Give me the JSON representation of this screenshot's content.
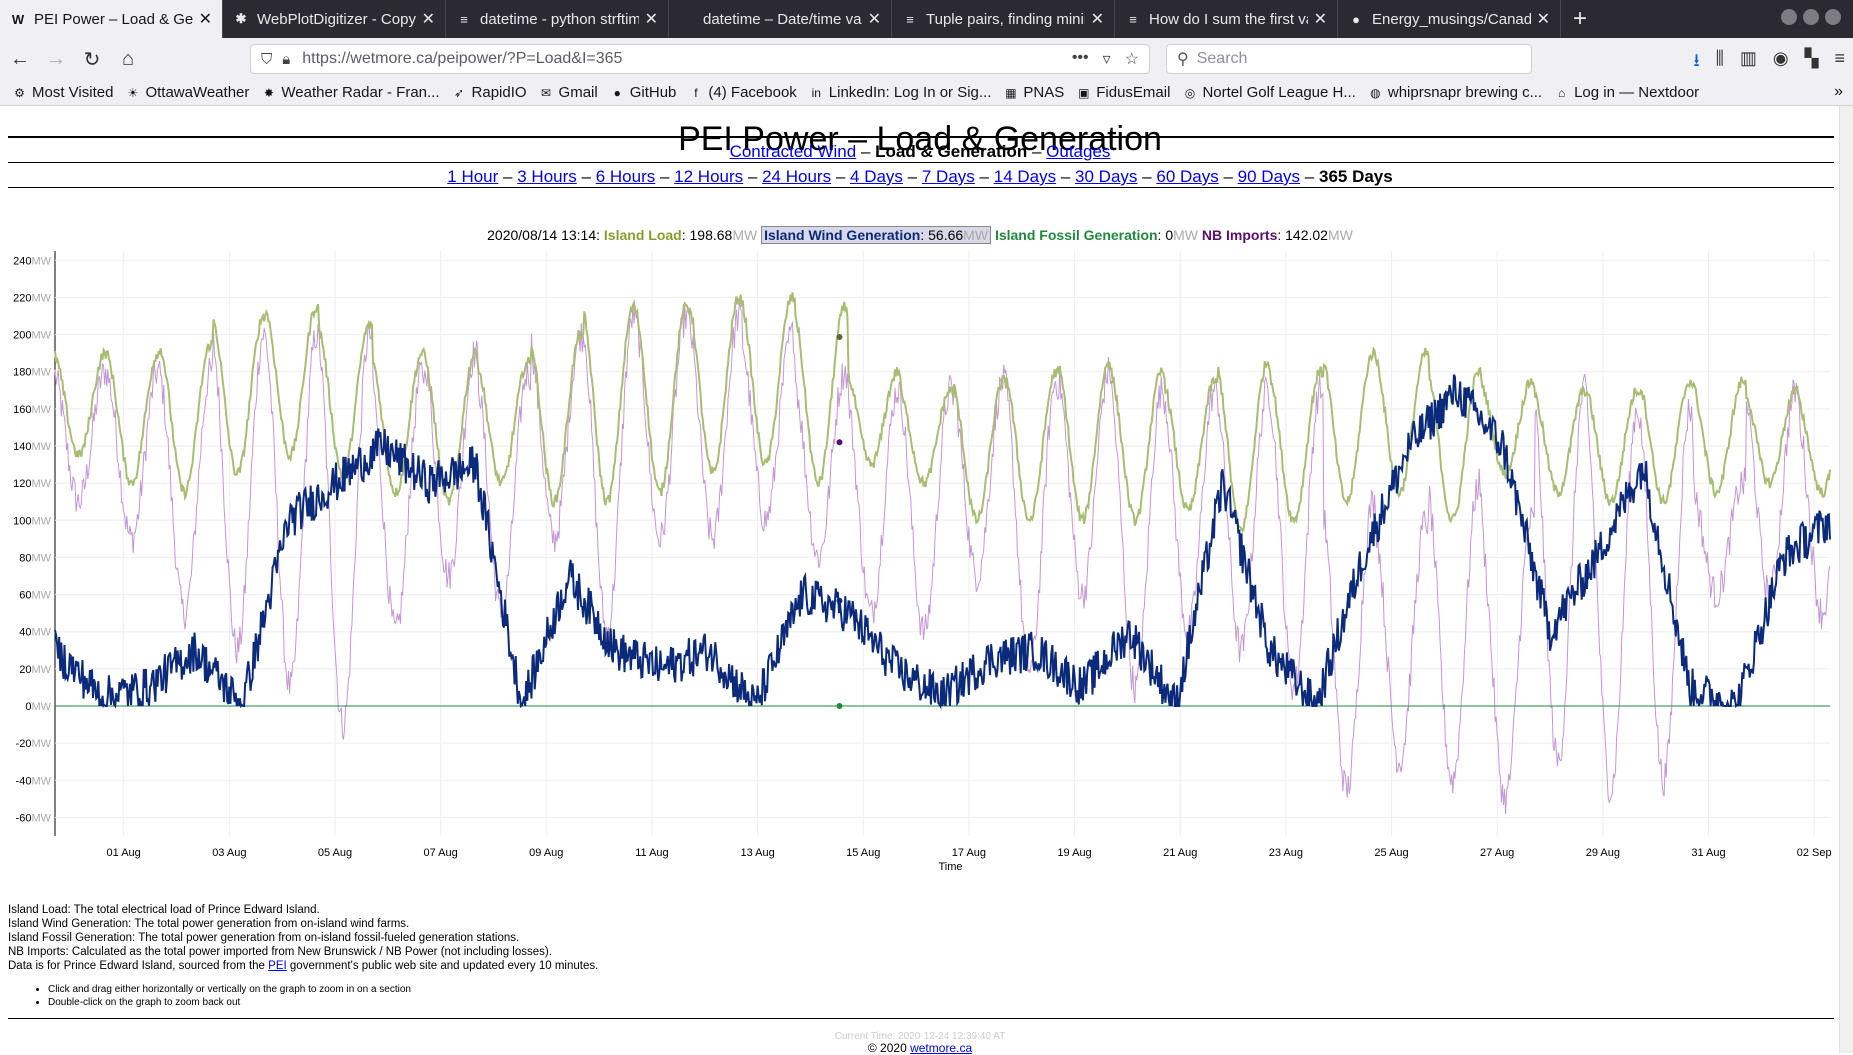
{
  "browser": {
    "tabs": [
      {
        "title": "PEI Power – Load & Gene",
        "favicon": "W",
        "active": true
      },
      {
        "title": "WebPlotDigitizer - Copy",
        "favicon": "✱",
        "active": false
      },
      {
        "title": "datetime - python strftim",
        "favicon": "≡",
        "active": false
      },
      {
        "title": "datetime – Date/time value",
        "favicon": "",
        "active": false
      },
      {
        "title": "Tuple pairs, finding minin",
        "favicon": "≡",
        "active": false
      },
      {
        "title": "How do I sum the first va",
        "favicon": "≡",
        "active": false
      },
      {
        "title": "Energy_musings/Canada",
        "favicon": "●",
        "active": false
      }
    ],
    "url_host": "https://wetmore.ca",
    "url_path": "/peipower/?P=Load&I=365",
    "search_placeholder": "Search",
    "bookmarks": [
      {
        "label": "Most Visited",
        "icon": "gear-icon"
      },
      {
        "label": "OttawaWeather",
        "icon": "sun-icon"
      },
      {
        "label": "Weather Radar - Fran...",
        "icon": "maple-leaf-icon"
      },
      {
        "label": "RapidIO",
        "icon": "rapidio-icon"
      },
      {
        "label": "Gmail",
        "icon": "gmail-icon"
      },
      {
        "label": "GitHub",
        "icon": "github-icon"
      },
      {
        "label": "(4) Facebook",
        "icon": "facebook-icon"
      },
      {
        "label": "LinkedIn: Log In or Sig...",
        "icon": "linkedin-icon"
      },
      {
        "label": "PNAS",
        "icon": "pnas-icon"
      },
      {
        "label": "FidusEmail",
        "icon": "fidus-icon"
      },
      {
        "label": "Nortel Golf League H...",
        "icon": "golf-icon"
      },
      {
        "label": "whiprsnapr brewing c...",
        "icon": "brewing-icon"
      },
      {
        "label": "Log in — Nextdoor",
        "icon": "nextdoor-icon"
      }
    ]
  },
  "page": {
    "title": "PEI Power – Load & Generation",
    "subnav1": {
      "link1": "Contracted Wind",
      "sep1": "–",
      "current": "Load & Generation",
      "sep2": "–",
      "link2": "Outages"
    },
    "ranges": [
      "1 Hour",
      "3 Hours",
      "6 Hours",
      "12 Hours",
      "24 Hours",
      "4 Days",
      "7 Days",
      "14 Days",
      "30 Days",
      "60 Days",
      "90 Days"
    ],
    "range_current": "365 Days",
    "range_sep": "–",
    "legend": {
      "timestamp": "2020/08/14 13:14:",
      "load_label": "Island Load",
      "load_value": "198.68",
      "wind_label": "Island Wind Generation",
      "wind_value": "56.66",
      "fossil_label": "Island Fossil Generation",
      "fossil_value": "0",
      "imports_label": "NB Imports",
      "imports_value": "142.02",
      "unit": "MW"
    },
    "notes": [
      "Island Load: The total electrical load of Prince Edward Island.",
      "Island Wind Generation: The total power generation from on-island wind farms.",
      "Island Fossil Generation: The total power generation from on-island fossil-fueled generation stations.",
      "NB Imports: Calculated as the total power imported from New Brunswick / NB Power (not including losses)."
    ],
    "data_note_pre": "Data is for Prince Edward Island, sourced from the ",
    "data_note_link": "PEI",
    "data_note_post": " government's public web site and updated every 10 minutes.",
    "tips": [
      "Click and drag either horizontally or vertically on the graph to zoom in on a section",
      "Double-click on the graph to zoom back out"
    ],
    "current_time": "Current Time: 2020-12-24 12:39:40 AT",
    "copyright": "© 2020 ",
    "copyright_link": "wetmore.ca"
  },
  "colors": {
    "load": "#a8bd72",
    "wind": "#0b2a7c",
    "fossil": "#1f8a3c",
    "imports": "#c596d6"
  },
  "chart_data": {
    "type": "line",
    "xlabel": "Time",
    "ylabel": "",
    "y_unit": "MW",
    "ylim": [
      -70,
      245
    ],
    "yticks": [
      240,
      220,
      200,
      180,
      160,
      140,
      120,
      100,
      80,
      60,
      40,
      20,
      0,
      -20,
      -40,
      -60
    ],
    "x_tick_labels": [
      "01 Aug",
      "03 Aug",
      "05 Aug",
      "07 Aug",
      "09 Aug",
      "11 Aug",
      "13 Aug",
      "15 Aug",
      "17 Aug",
      "19 Aug",
      "21 Aug",
      "23 Aug",
      "25 Aug",
      "27 Aug",
      "29 Aug",
      "31 Aug",
      "02 Sep"
    ],
    "x_day_range": [
      -1.3,
      32.3
    ],
    "grid": true,
    "highlight_day": 13.55,
    "series": [
      {
        "name": "Island Load",
        "color": "#a8bd72",
        "daily_min": [
          135,
          120,
          115,
          125,
          135,
          125,
          115,
          110,
          120,
          110,
          110,
          115,
          125,
          130,
          120,
          130,
          120,
          100,
          100,
          100,
          100,
          105,
          95,
          100,
          110,
          115,
          100,
          125,
          115,
          110,
          110,
          115,
          120,
          115,
          110
        ],
        "daily_max": [
          190,
          190,
          195,
          210,
          215,
          205,
          190,
          190,
          185,
          200,
          215,
          215,
          220,
          220,
          215,
          180,
          170,
          175,
          180,
          185,
          180,
          175,
          185,
          180,
          190,
          190,
          180,
          175,
          170,
          170,
          175,
          175,
          170,
          165,
          170
        ]
      },
      {
        "name": "Island Wind Generation",
        "color": "#0b2a7c",
        "daily_values": [
          30,
          5,
          10,
          30,
          0,
          100,
          120,
          140,
          120,
          130,
          0,
          70,
          30,
          20,
          30,
          0,
          60,
          50,
          20,
          5,
          25,
          30,
          10,
          40,
          0,
          120,
          30,
          0,
          80,
          140,
          170,
          140,
          40,
          80,
          130,
          10,
          0,
          80,
          100
        ]
      },
      {
        "name": "Island Fossil Generation",
        "color": "#1f8a3c",
        "daily_values": [
          0,
          0,
          0,
          0,
          0,
          0,
          0,
          0,
          0,
          0,
          0,
          0,
          0,
          0,
          0,
          0,
          0,
          0,
          0,
          0,
          0,
          0,
          0,
          0,
          0,
          0,
          0,
          0,
          0,
          0,
          0,
          0,
          0,
          0
        ]
      },
      {
        "name": "NB Imports",
        "color": "#c596d6",
        "daily_min": [
          110,
          90,
          50,
          30,
          10,
          -10,
          40,
          70,
          50,
          90,
          40,
          90,
          90,
          100,
          80,
          50,
          40,
          70,
          20,
          60,
          10,
          40,
          30,
          10,
          -45,
          -30,
          -40,
          -50,
          -30,
          -45,
          -40,
          60,
          60,
          50,
          40
        ],
        "daily_max": [
          180,
          180,
          180,
          200,
          200,
          200,
          180,
          190,
          180,
          200,
          210,
          210,
          210,
          200,
          180,
          170,
          170,
          175,
          175,
          180,
          170,
          170,
          170,
          170,
          110,
          100,
          120,
          100,
          170,
          160,
          160,
          120,
          170,
          160,
          160
        ]
      }
    ]
  }
}
